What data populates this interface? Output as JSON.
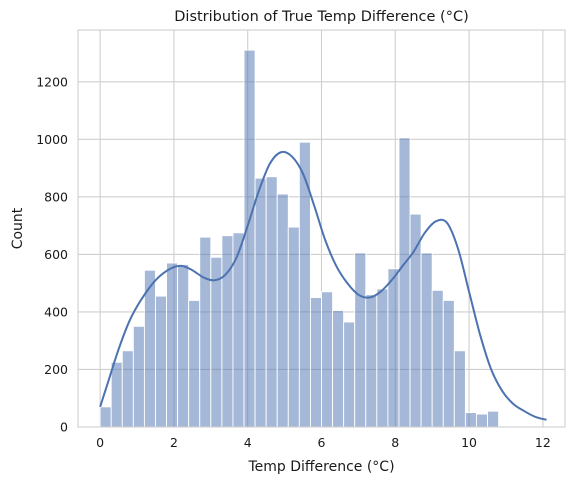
{
  "chart_data": {
    "type": "bar",
    "title": "Distribution of True Temp Difference (°C)",
    "xlabel": "Temp Difference (°C)",
    "ylabel": "Count",
    "xlim": [
      -0.6,
      12.6
    ],
    "ylim": [
      0,
      1380
    ],
    "xticks": [
      0,
      2,
      4,
      6,
      8,
      10,
      12
    ],
    "yticks": [
      0,
      200,
      400,
      600,
      800,
      1000,
      1200
    ],
    "grid": true,
    "bin_start": 0,
    "bin_width": 0.3,
    "counts": [
      70,
      225,
      265,
      350,
      545,
      455,
      570,
      565,
      440,
      660,
      590,
      665,
      675,
      1310,
      865,
      870,
      810,
      695,
      990,
      450,
      470,
      405,
      365,
      605,
      460,
      480,
      550,
      1005,
      740,
      605,
      475,
      440,
      265,
      50,
      45,
      55
    ],
    "kde": {
      "x": [
        0,
        0.2,
        0.5,
        0.8,
        1.1,
        1.5,
        1.9,
        2.2,
        2.5,
        2.8,
        3.1,
        3.4,
        3.7,
        4.0,
        4.3,
        4.6,
        4.9,
        5.2,
        5.5,
        5.8,
        6.1,
        6.4,
        6.7,
        7.0,
        7.3,
        7.6,
        7.9,
        8.2,
        8.5,
        8.8,
        9.1,
        9.4,
        9.7,
        10.0,
        10.3,
        10.6,
        10.9,
        11.2,
        11.5,
        11.8,
        12.1
      ],
      "y": [
        70,
        150,
        270,
        370,
        440,
        510,
        550,
        560,
        545,
        520,
        510,
        530,
        590,
        700,
        820,
        915,
        955,
        940,
        880,
        770,
        650,
        560,
        500,
        460,
        450,
        470,
        510,
        560,
        610,
        675,
        715,
        710,
        620,
        470,
        320,
        200,
        125,
        80,
        55,
        35,
        25
      ]
    }
  }
}
